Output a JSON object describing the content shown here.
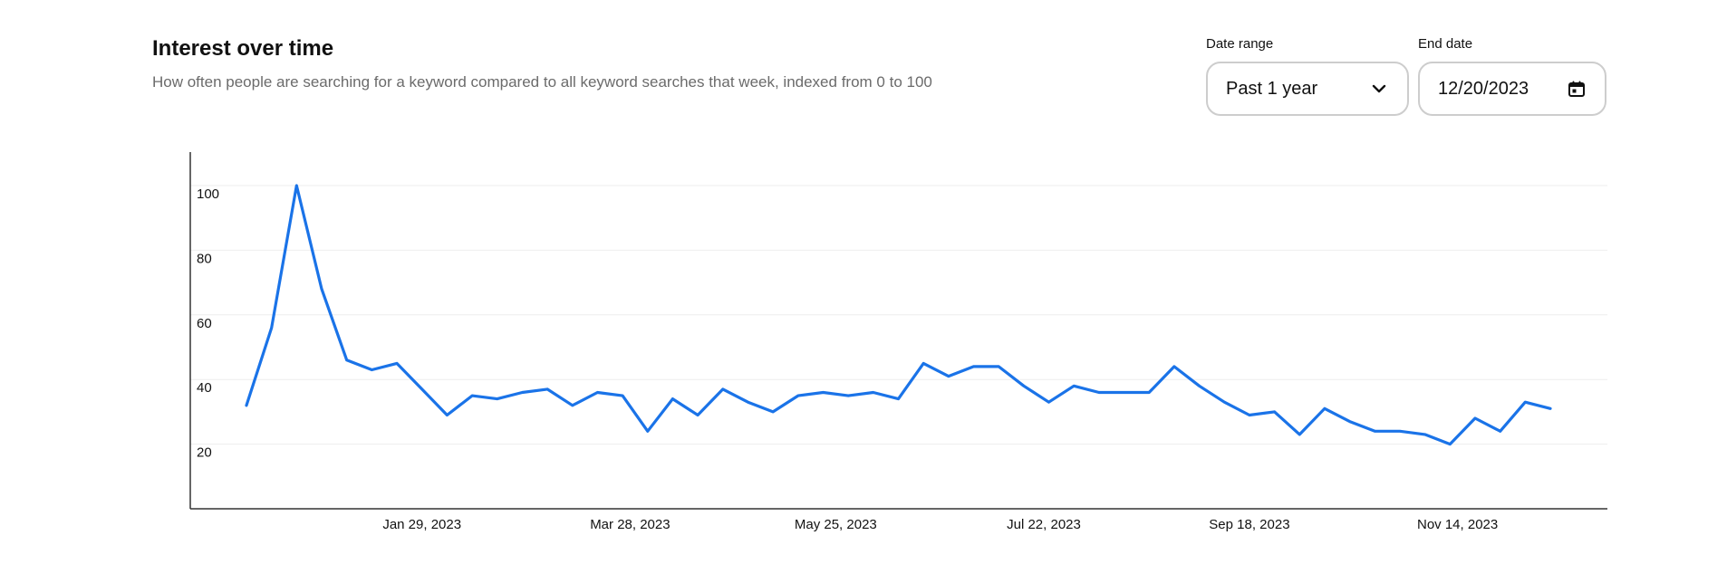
{
  "header": {
    "title": "Interest over time",
    "subtitle": "How often people are searching for a keyword compared to all keyword searches that week, indexed from 0 to 100"
  },
  "controls": {
    "date_range_label": "Date range",
    "date_range_value": "Past 1 year",
    "end_date_label": "End date",
    "end_date_value": "12/20/2023"
  },
  "icons": {
    "dropdown": "chevron-down-icon",
    "calendar": "calendar-icon"
  },
  "colors": {
    "line": "#1a73e8",
    "grid": "#eeeeee",
    "axis": "#333333"
  },
  "chart_data": {
    "type": "line",
    "title": "Interest over time",
    "xlabel": "",
    "ylabel": "",
    "ylim": [
      0,
      105
    ],
    "yticks": [
      20,
      40,
      60,
      80,
      100
    ],
    "grid": true,
    "x_ticks": [
      "Jan 29, 2023",
      "Mar 28, 2023",
      "May 25, 2023",
      "Jul 22, 2023",
      "Sep 18, 2023",
      "Nov 14, 2023"
    ],
    "x_tick_positions": [
      7,
      15.3,
      23.5,
      31.8,
      40,
      48.3
    ],
    "series": [
      {
        "values": [
          32,
          56,
          100,
          68,
          46,
          43,
          45,
          37,
          29,
          35,
          34,
          36,
          37,
          32,
          36,
          35,
          24,
          34,
          29,
          37,
          33,
          30,
          35,
          36,
          35,
          36,
          34,
          45,
          41,
          44,
          44,
          38,
          33,
          38,
          36,
          36,
          36,
          44,
          38,
          33,
          29,
          30,
          23,
          31,
          27,
          24,
          24,
          23,
          20,
          28,
          24,
          33,
          31
        ]
      }
    ]
  }
}
